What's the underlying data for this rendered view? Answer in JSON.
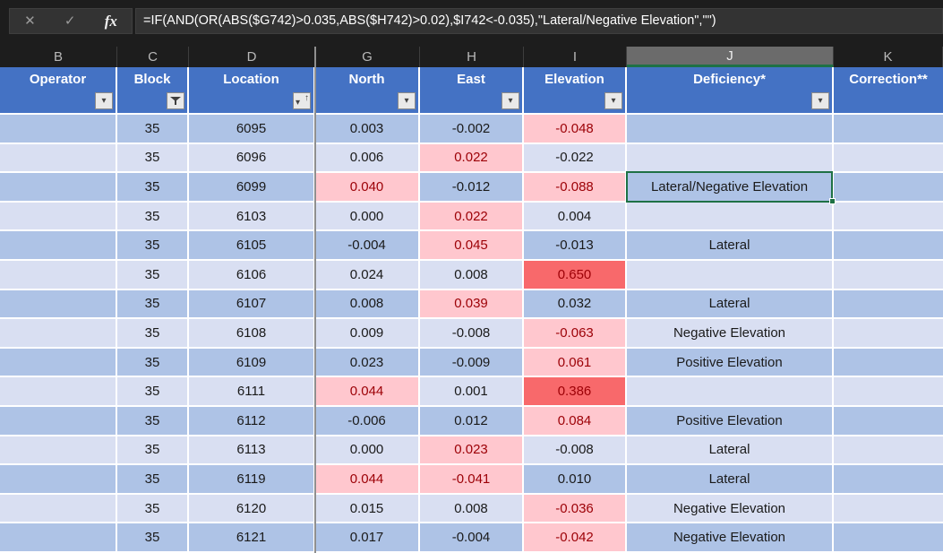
{
  "app": "excel-dark-theme",
  "formula_bar": {
    "formula": "=IF(AND(OR(ABS($G742)>0.035,ABS($H742)>0.02),$I742<-0.035),\"Lateral/Negative Elevation\",\"\")"
  },
  "icons": {
    "cancel": "✕",
    "confirm": "✓",
    "function": "fx",
    "dropdown": "▾",
    "sort_up": "↑"
  },
  "colors": {
    "chrome_bg": "#1d1d1d",
    "panel_bg": "#333333",
    "header_bg": "#4472c4",
    "band_dark": "#aec3e6",
    "band_light": "#d9dff2",
    "flag_bg": "#ffc7ce",
    "flag_text": "#9c0006",
    "hot_bg": "#f8696b",
    "selection_border": "#1e7145"
  },
  "columns": [
    {
      "letter": "B",
      "label": "Operator",
      "filter": "dropdown",
      "selected": false
    },
    {
      "letter": "C",
      "label": "Block",
      "filter": "funnel",
      "selected": false
    },
    {
      "letter": "D",
      "label": "Location",
      "filter": "sort-asc",
      "selected": false
    },
    {
      "letter": "G",
      "label": "North",
      "filter": "dropdown",
      "selected": false
    },
    {
      "letter": "H",
      "label": "East",
      "filter": "dropdown",
      "selected": false
    },
    {
      "letter": "I",
      "label": "Elevation",
      "filter": "dropdown",
      "selected": false
    },
    {
      "letter": "J",
      "label": "Deficiency*",
      "filter": "dropdown",
      "selected": true
    },
    {
      "letter": "K",
      "label": "Correction**",
      "filter": "none",
      "selected": false
    }
  ],
  "rows": [
    {
      "operator": "",
      "block": "35",
      "location": "6095",
      "north": "0.003",
      "north_flag": "none",
      "east": "-0.002",
      "east_flag": "none",
      "elevation": "-0.048",
      "elevation_flag": "pink",
      "deficiency": "",
      "correction": "",
      "selected": false
    },
    {
      "operator": "",
      "block": "35",
      "location": "6096",
      "north": "0.006",
      "north_flag": "none",
      "east": "0.022",
      "east_flag": "pink",
      "elevation": "-0.022",
      "elevation_flag": "none",
      "deficiency": "",
      "correction": "",
      "selected": false
    },
    {
      "operator": "",
      "block": "35",
      "location": "6099",
      "north": "0.040",
      "north_flag": "pink",
      "east": "-0.012",
      "east_flag": "none",
      "elevation": "-0.088",
      "elevation_flag": "pink",
      "deficiency": "Lateral/Negative Elevation",
      "correction": "",
      "selected": true
    },
    {
      "operator": "",
      "block": "35",
      "location": "6103",
      "north": "0.000",
      "north_flag": "none",
      "east": "0.022",
      "east_flag": "pink",
      "elevation": "0.004",
      "elevation_flag": "none",
      "deficiency": "",
      "correction": "",
      "selected": false
    },
    {
      "operator": "",
      "block": "35",
      "location": "6105",
      "north": "-0.004",
      "north_flag": "none",
      "east": "0.045",
      "east_flag": "pink",
      "elevation": "-0.013",
      "elevation_flag": "none",
      "deficiency": "Lateral",
      "correction": "",
      "selected": false
    },
    {
      "operator": "",
      "block": "35",
      "location": "6106",
      "north": "0.024",
      "north_flag": "none",
      "east": "0.008",
      "east_flag": "none",
      "elevation": "0.650",
      "elevation_flag": "red",
      "deficiency": "",
      "correction": "",
      "selected": false
    },
    {
      "operator": "",
      "block": "35",
      "location": "6107",
      "north": "0.008",
      "north_flag": "none",
      "east": "0.039",
      "east_flag": "pink",
      "elevation": "0.032",
      "elevation_flag": "none",
      "deficiency": "Lateral",
      "correction": "",
      "selected": false
    },
    {
      "operator": "",
      "block": "35",
      "location": "6108",
      "north": "0.009",
      "north_flag": "none",
      "east": "-0.008",
      "east_flag": "none",
      "elevation": "-0.063",
      "elevation_flag": "pink",
      "deficiency": "Negative Elevation",
      "correction": "",
      "selected": false
    },
    {
      "operator": "",
      "block": "35",
      "location": "6109",
      "north": "0.023",
      "north_flag": "none",
      "east": "-0.009",
      "east_flag": "none",
      "elevation": "0.061",
      "elevation_flag": "pink",
      "deficiency": "Positive Elevation",
      "correction": "",
      "selected": false
    },
    {
      "operator": "",
      "block": "35",
      "location": "6111",
      "north": "0.044",
      "north_flag": "pink",
      "east": "0.001",
      "east_flag": "none",
      "elevation": "0.386",
      "elevation_flag": "red",
      "deficiency": "",
      "correction": "",
      "selected": false
    },
    {
      "operator": "",
      "block": "35",
      "location": "6112",
      "north": "-0.006",
      "north_flag": "none",
      "east": "0.012",
      "east_flag": "none",
      "elevation": "0.084",
      "elevation_flag": "pink",
      "deficiency": "Positive Elevation",
      "correction": "",
      "selected": false
    },
    {
      "operator": "",
      "block": "35",
      "location": "6113",
      "north": "0.000",
      "north_flag": "none",
      "east": "0.023",
      "east_flag": "pink",
      "elevation": "-0.008",
      "elevation_flag": "none",
      "deficiency": "Lateral",
      "correction": "",
      "selected": false
    },
    {
      "operator": "",
      "block": "35",
      "location": "6119",
      "north": "0.044",
      "north_flag": "pink",
      "east": "-0.041",
      "east_flag": "pink",
      "elevation": "0.010",
      "elevation_flag": "none",
      "deficiency": "Lateral",
      "correction": "",
      "selected": false
    },
    {
      "operator": "",
      "block": "35",
      "location": "6120",
      "north": "0.015",
      "north_flag": "none",
      "east": "0.008",
      "east_flag": "none",
      "elevation": "-0.036",
      "elevation_flag": "pink",
      "deficiency": "Negative Elevation",
      "correction": "",
      "selected": false
    },
    {
      "operator": "",
      "block": "35",
      "location": "6121",
      "north": "0.017",
      "north_flag": "none",
      "east": "-0.004",
      "east_flag": "none",
      "elevation": "-0.042",
      "elevation_flag": "pink",
      "deficiency": "Negative Elevation",
      "correction": "",
      "selected": false
    }
  ]
}
